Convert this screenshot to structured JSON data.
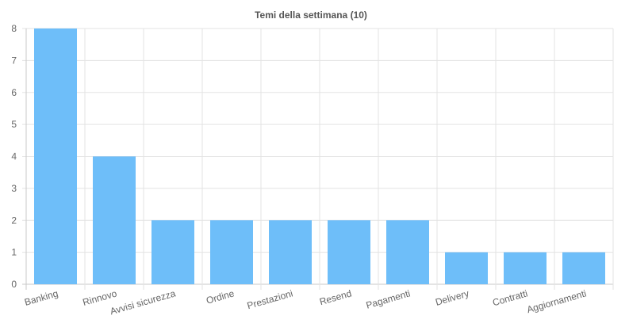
{
  "chart_data": {
    "type": "bar",
    "title": "Temi della settimana (10)",
    "xlabel": "",
    "ylabel": "",
    "categories": [
      "Banking",
      "Rinnovo",
      "Avvisi sicurezza",
      "Ordine",
      "Prestazioni",
      "Resend",
      "Pagamenti",
      "Delivery",
      "Contratti",
      "Aggiornamenti"
    ],
    "values": [
      8,
      4,
      2,
      2,
      2,
      2,
      2,
      1,
      1,
      1
    ],
    "ylim": [
      0,
      8
    ],
    "yticks": [
      "0",
      "1",
      "2",
      "3",
      "4",
      "5",
      "6",
      "7",
      "8"
    ],
    "grid": true,
    "legend": "none",
    "colors": {
      "bar": "#6ebef9",
      "grid": "#e3e3e3",
      "axis": "#c9c9c9",
      "tick_text": "#666666",
      "title_text": "#555555"
    }
  }
}
